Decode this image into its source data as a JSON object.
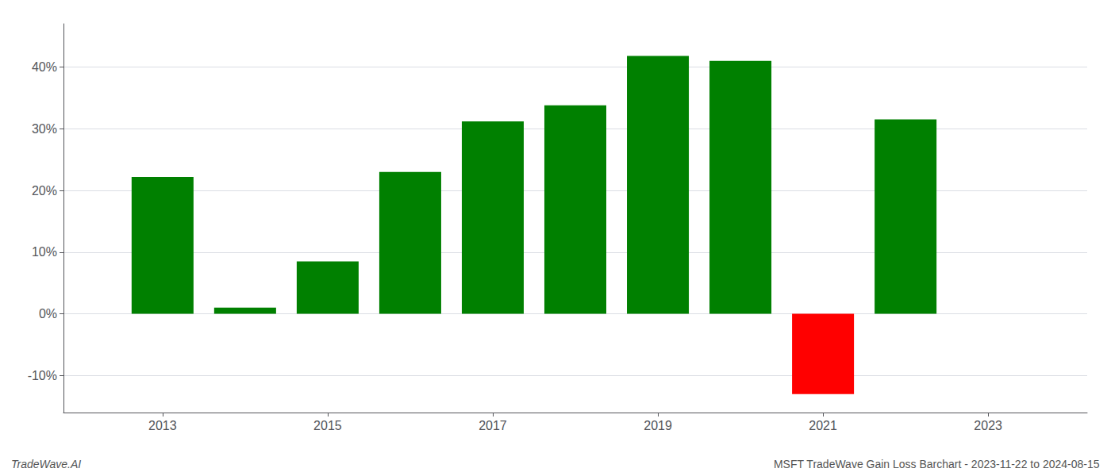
{
  "chart_data": {
    "type": "bar",
    "x": [
      2013,
      2014,
      2015,
      2016,
      2017,
      2018,
      2019,
      2020,
      2021,
      2022
    ],
    "values": [
      22.2,
      1.0,
      8.5,
      23.0,
      31.2,
      33.8,
      41.8,
      41.0,
      -13.0,
      31.5
    ],
    "colors": [
      "#008000",
      "#008000",
      "#008000",
      "#008000",
      "#008000",
      "#008000",
      "#008000",
      "#008000",
      "#ff0000",
      "#008000"
    ],
    "xlim": [
      2011.8,
      2024.2
    ],
    "xticks": [
      2013,
      2015,
      2017,
      2019,
      2021,
      2023
    ],
    "ylim": [
      -16,
      47
    ],
    "yticks": [
      {
        "value": -10,
        "label": "-10%"
      },
      {
        "value": 0,
        "label": "0%"
      },
      {
        "value": 10,
        "label": "10%"
      },
      {
        "value": 20,
        "label": "20%"
      },
      {
        "value": 30,
        "label": "30%"
      },
      {
        "value": 40,
        "label": "40%"
      }
    ],
    "grid": true,
    "annotations": [
      "TradeWave.AI",
      "MSFT TradeWave Gain Loss Barchart - 2023-11-22 to 2024-08-15"
    ]
  }
}
